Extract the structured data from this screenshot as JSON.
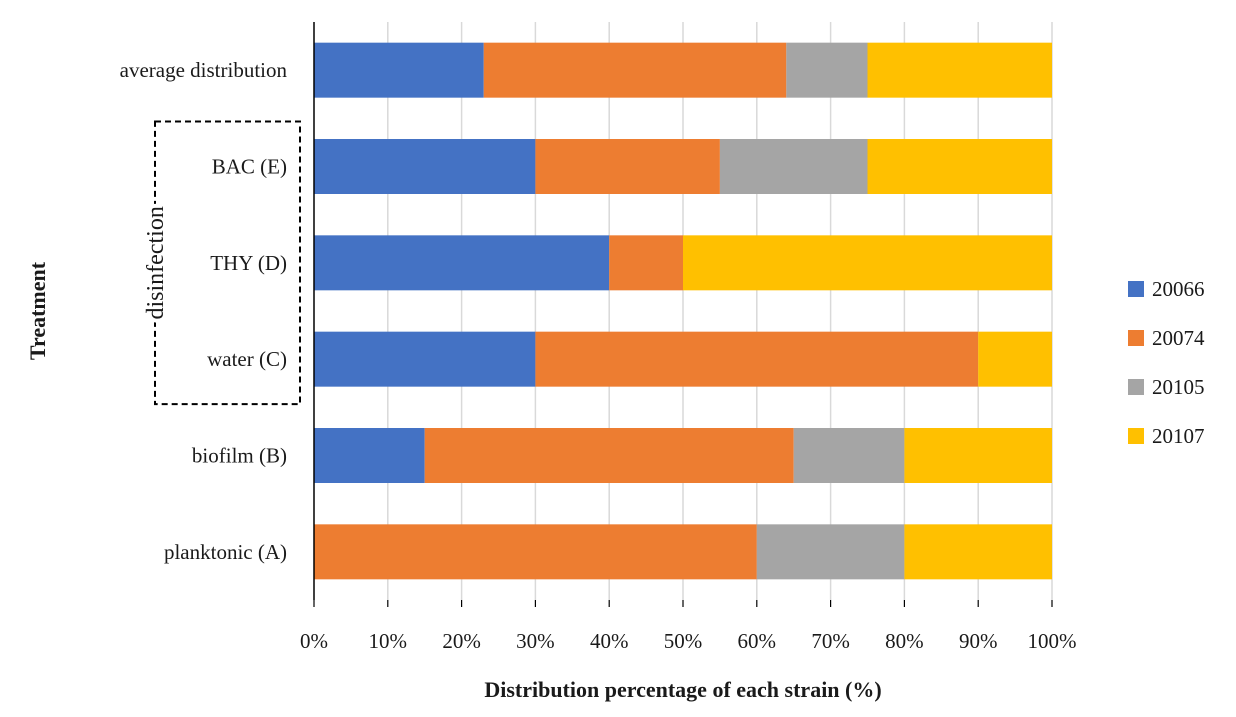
{
  "chart_data": {
    "type": "bar",
    "orientation": "horizontal",
    "stacked": true,
    "title": "",
    "xlabel": "Distribution percentage of each strain (%)",
    "ylabel": "Treatment",
    "xlim": [
      0,
      100
    ],
    "x_ticks": [
      "0%",
      "10%",
      "20%",
      "30%",
      "40%",
      "50%",
      "60%",
      "70%",
      "80%",
      "90%",
      "100%"
    ],
    "grid": "vertical",
    "legend_position": "right",
    "categories": [
      "average distribution",
      "BAC (E)",
      "THY (D)",
      "water (C)",
      "biofilm (B)",
      "planktonic (A)"
    ],
    "series": [
      {
        "name": "20066",
        "color": "#4472C4",
        "values": [
          23,
          30,
          40,
          30,
          15,
          0
        ]
      },
      {
        "name": "20074",
        "color": "#ED7D31",
        "values": [
          41,
          25,
          10,
          60,
          50,
          60
        ]
      },
      {
        "name": "20105",
        "color": "#A5A5A5",
        "values": [
          11,
          20,
          0,
          0,
          15,
          20
        ]
      },
      {
        "name": "20107",
        "color": "#FFC000",
        "values": [
          25,
          25,
          50,
          10,
          20,
          20
        ]
      }
    ],
    "annotations": [
      {
        "text": "disinfection",
        "style": "dashed-bracket",
        "groups": [
          "BAC (E)",
          "THY (D)",
          "water (C)"
        ]
      }
    ]
  }
}
